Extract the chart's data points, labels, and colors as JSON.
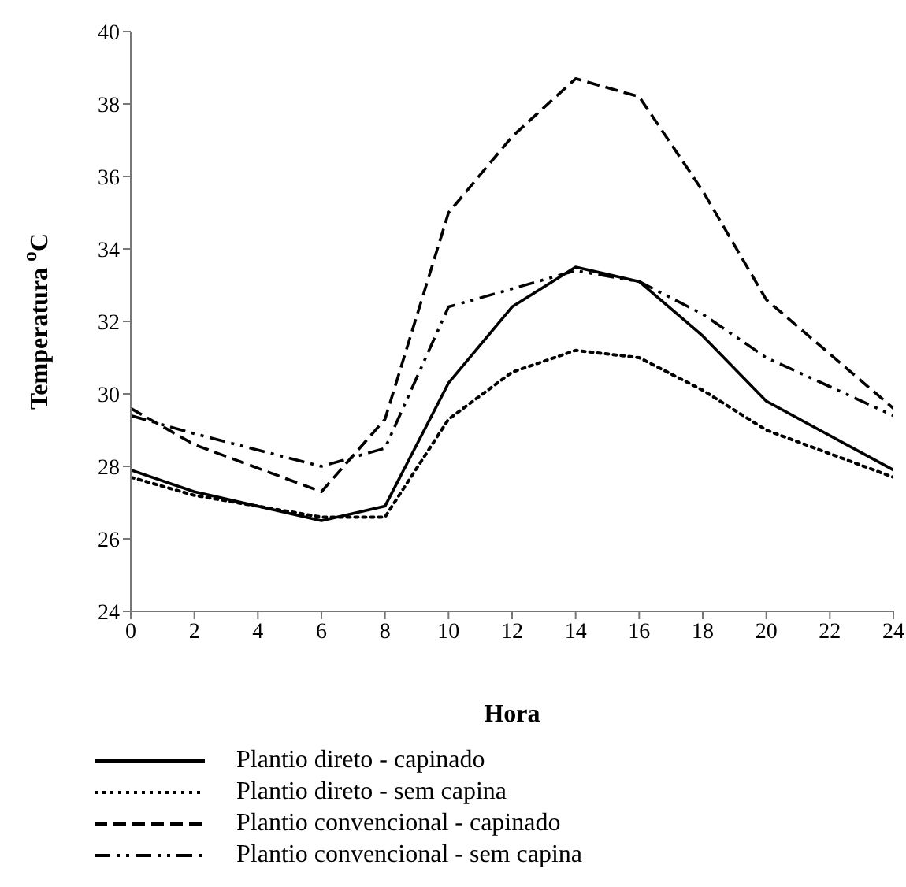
{
  "chart_data": {
    "type": "line",
    "xlabel": "Hora",
    "ylabel": "Temperatura $^{o}$C",
    "x": [
      0,
      2,
      6,
      8,
      10,
      12,
      14,
      16,
      18,
      20,
      24
    ],
    "series": [
      {
        "name": "Plantio direto - capinado",
        "color": "#000000",
        "line_style": "solid",
        "values": [
          27.9,
          27.3,
          26.5,
          26.9,
          30.3,
          32.4,
          33.5,
          33.1,
          31.6,
          29.8,
          27.9
        ]
      },
      {
        "name": "Plantio direto - sem capina",
        "color": "#000000",
        "line_style": "dotted",
        "values": [
          27.7,
          27.2,
          26.6,
          26.6,
          29.3,
          30.6,
          31.2,
          31.0,
          30.1,
          29.0,
          27.7
        ]
      },
      {
        "name": "Plantio convencional - capinado",
        "color": "#000000",
        "line_style": "dashed",
        "values": [
          29.6,
          28.6,
          27.3,
          29.3,
          35.0,
          37.1,
          38.7,
          38.2,
          35.6,
          32.6,
          29.6
        ]
      },
      {
        "name": "Plantio convencional - sem capina",
        "color": "#000000",
        "line_style": "dashdot",
        "values": [
          29.4,
          28.9,
          28.0,
          28.5,
          32.4,
          32.9,
          33.4,
          33.1,
          32.2,
          31.0,
          29.4
        ]
      }
    ],
    "xlim": [
      0,
      24
    ],
    "xticks": [
      0,
      2,
      4,
      6,
      8,
      10,
      12,
      14,
      16,
      18,
      20,
      22,
      24
    ],
    "ylim": [
      24,
      40
    ],
    "yticks": [
      24,
      26,
      28,
      30,
      32,
      34,
      36,
      38,
      40
    ],
    "grid": false,
    "legend": "bottom left",
    "marker": "none"
  }
}
